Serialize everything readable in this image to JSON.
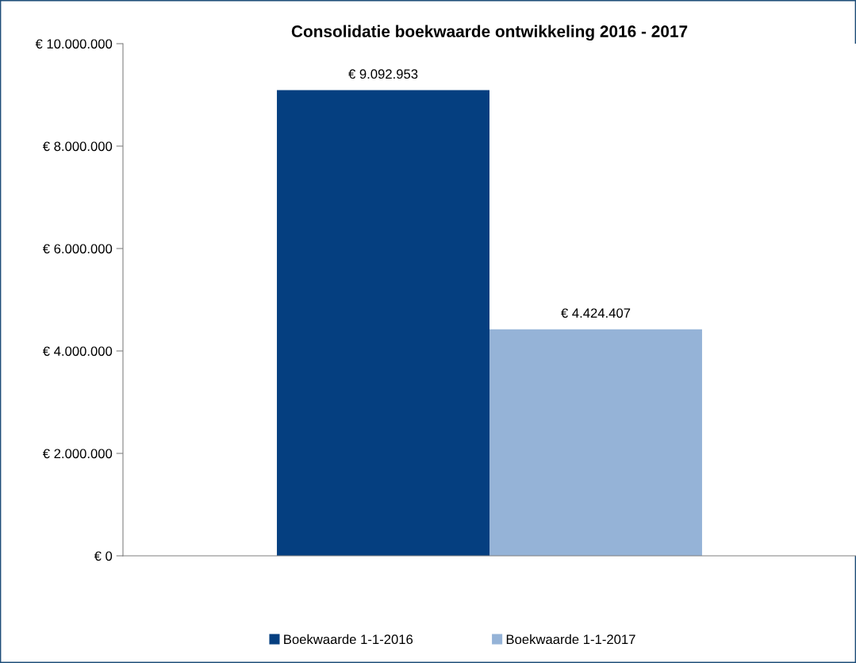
{
  "chart_data": {
    "type": "bar",
    "title": "Consolidatie boekwaarde ontwikkeling 2016 - 2017",
    "categories": [
      null
    ],
    "series": [
      {
        "name": "Boekwaarde 1-1-2016",
        "color": "#053f80",
        "values": [
          9092953
        ],
        "value_labels": [
          "€ 9.092.953"
        ]
      },
      {
        "name": "Boekwaarde 1-1-2017",
        "color": "#95b3d7",
        "values": [
          4424407
        ],
        "value_labels": [
          "€ 4.424.407"
        ]
      }
    ],
    "ylim": [
      0,
      10000000
    ],
    "yticks": [
      {
        "value": 0,
        "label": "€ 0"
      },
      {
        "value": 2000000,
        "label": "€ 2.000.000"
      },
      {
        "value": 4000000,
        "label": "€ 4.000.000"
      },
      {
        "value": 6000000,
        "label": "€ 6.000.000"
      },
      {
        "value": 8000000,
        "label": "€ 8.000.000"
      },
      {
        "value": 10000000,
        "label": "€ 10.000.000"
      }
    ],
    "grid": false,
    "legend": "bottom"
  }
}
